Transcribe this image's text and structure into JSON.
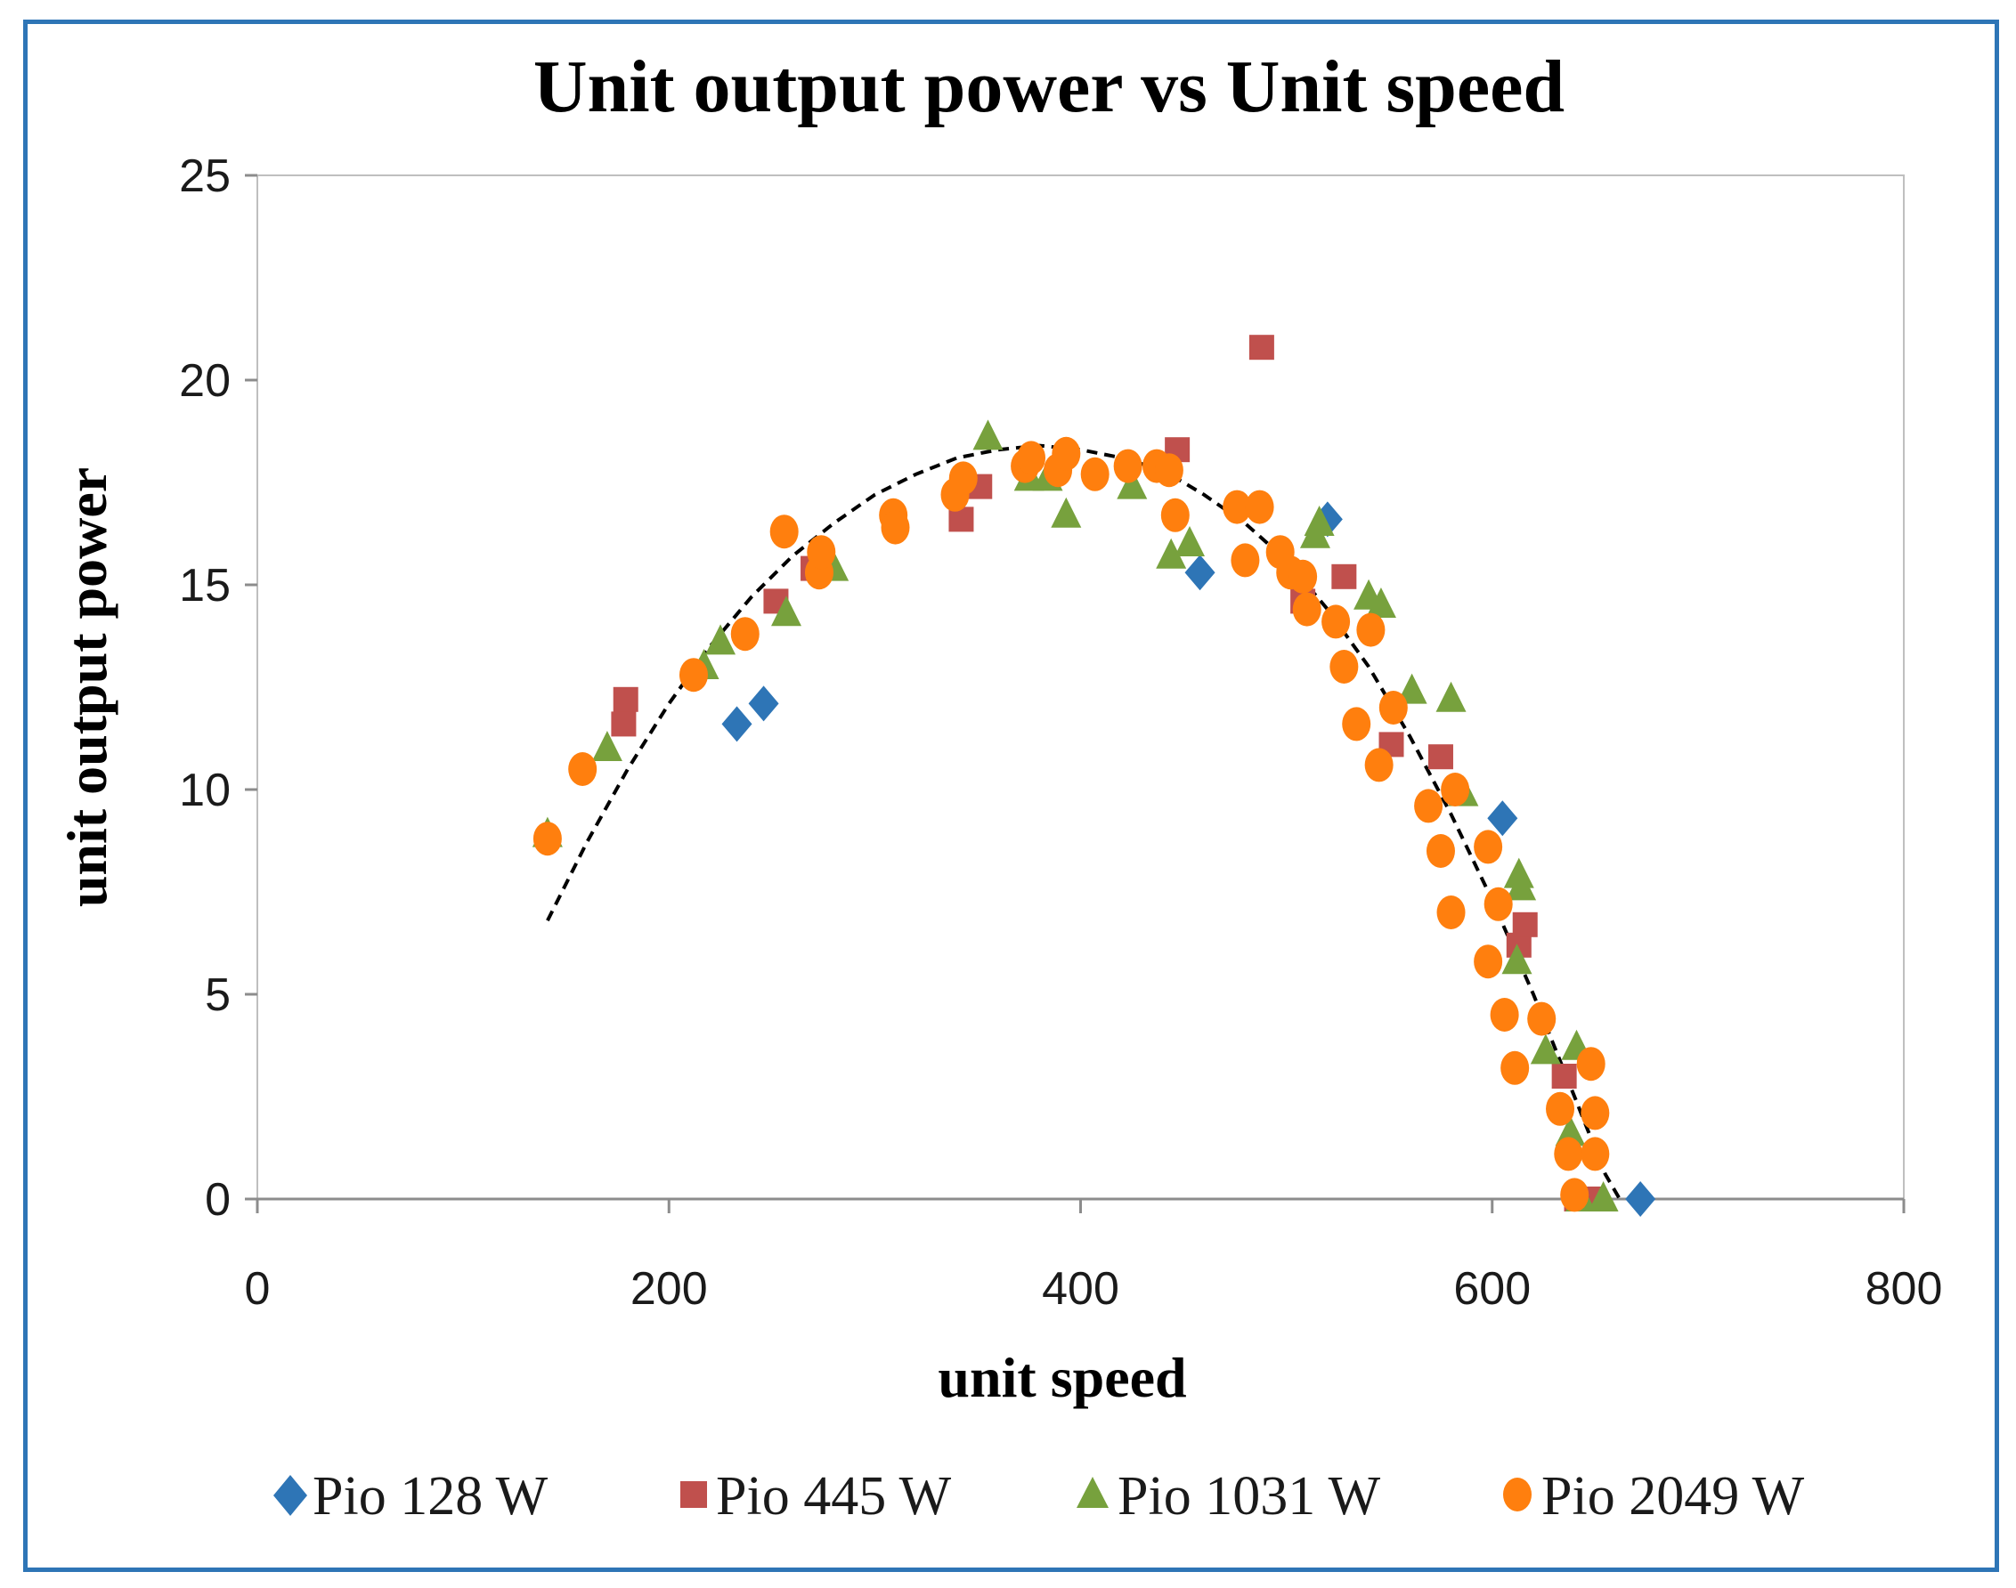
{
  "chart_data": {
    "type": "scatter",
    "title": "Unit output power vs Unit speed",
    "xlabel": "unit speed",
    "ylabel": "unit output power",
    "xlim": [
      0,
      800
    ],
    "ylim": [
      0,
      25
    ],
    "xticks": [
      "0",
      "200",
      "400",
      "600",
      "800"
    ],
    "yticks": [
      "0",
      "5",
      "10",
      "15",
      "20",
      "25"
    ],
    "grid": false,
    "legend_position": "bottom",
    "series": [
      {
        "name": "Pio 128 W",
        "marker": "diamond",
        "color": "#2e75b6",
        "points": [
          [
            233,
            11.6
          ],
          [
            246,
            12.1
          ],
          [
            458,
            15.3
          ],
          [
            520,
            16.6
          ],
          [
            605,
            9.3
          ],
          [
            672,
            0.0
          ]
        ]
      },
      {
        "name": "Pio 445 W",
        "marker": "square",
        "color": "#c0504d",
        "points": [
          [
            178,
            11.6
          ],
          [
            179,
            12.2
          ],
          [
            252,
            14.6
          ],
          [
            270,
            15.4
          ],
          [
            342,
            16.6
          ],
          [
            351,
            17.4
          ],
          [
            447,
            18.3
          ],
          [
            488,
            20.8
          ],
          [
            508,
            14.6
          ],
          [
            528,
            15.2
          ],
          [
            551,
            11.1
          ],
          [
            575,
            10.8
          ],
          [
            613,
            6.2
          ],
          [
            616,
            6.7
          ],
          [
            635,
            3.0
          ],
          [
            641,
            0.0
          ],
          [
            647,
            0.0
          ]
        ]
      },
      {
        "name": "Pio 1031 W",
        "marker": "triangle",
        "color": "#77a13d",
        "points": [
          [
            141,
            8.9
          ],
          [
            170,
            11.0
          ],
          [
            217,
            13.0
          ],
          [
            225,
            13.6
          ],
          [
            257,
            14.3
          ],
          [
            280,
            15.4
          ],
          [
            355,
            18.6
          ],
          [
            375,
            17.6
          ],
          [
            384,
            17.6
          ],
          [
            393,
            16.7
          ],
          [
            425,
            17.4
          ],
          [
            444,
            15.7
          ],
          [
            453,
            16.0
          ],
          [
            514,
            16.2
          ],
          [
            516,
            16.5
          ],
          [
            540,
            14.7
          ],
          [
            546,
            14.5
          ],
          [
            561,
            12.4
          ],
          [
            580,
            12.2
          ],
          [
            586,
            9.9
          ],
          [
            613,
            7.9
          ],
          [
            614,
            7.6
          ],
          [
            612,
            5.8
          ],
          [
            626,
            3.6
          ],
          [
            638,
            1.6
          ],
          [
            641,
            3.7
          ],
          [
            643,
            0.0
          ],
          [
            654,
            0.0
          ]
        ]
      },
      {
        "name": "Pio 2049 W",
        "marker": "circle",
        "color": "#ff7f0e",
        "points": [
          [
            141,
            8.8
          ],
          [
            158,
            10.5
          ],
          [
            212,
            12.8
          ],
          [
            237,
            13.8
          ],
          [
            256,
            16.3
          ],
          [
            273,
            15.3
          ],
          [
            274,
            15.8
          ],
          [
            309,
            16.7
          ],
          [
            310,
            16.4
          ],
          [
            339,
            17.2
          ],
          [
            343,
            17.6
          ],
          [
            373,
            17.9
          ],
          [
            376,
            18.1
          ],
          [
            389,
            17.8
          ],
          [
            393,
            18.2
          ],
          [
            407,
            17.7
          ],
          [
            423,
            17.9
          ],
          [
            437,
            17.9
          ],
          [
            443,
            17.8
          ],
          [
            446,
            16.7
          ],
          [
            476,
            16.9
          ],
          [
            480,
            15.6
          ],
          [
            487,
            16.9
          ],
          [
            497,
            15.8
          ],
          [
            502,
            15.3
          ],
          [
            508,
            15.2
          ],
          [
            510,
            14.4
          ],
          [
            524,
            14.1
          ],
          [
            528,
            13.0
          ],
          [
            534,
            11.6
          ],
          [
            541,
            13.9
          ],
          [
            545,
            10.6
          ],
          [
            552,
            12.0
          ],
          [
            569,
            9.6
          ],
          [
            575,
            8.5
          ],
          [
            580,
            7.0
          ],
          [
            582,
            10.0
          ],
          [
            598,
            8.6
          ],
          [
            598,
            5.8
          ],
          [
            603,
            7.2
          ],
          [
            606,
            4.5
          ],
          [
            611,
            3.2
          ],
          [
            624,
            4.4
          ],
          [
            633,
            2.2
          ],
          [
            637,
            1.1
          ],
          [
            640,
            0.1
          ],
          [
            648,
            3.3
          ],
          [
            650,
            1.1
          ],
          [
            650,
            2.1
          ]
        ]
      }
    ],
    "trendline": {
      "name": "polynomial fit",
      "style": "dashed",
      "color": "#000000",
      "points": [
        [
          141,
          6.8
        ],
        [
          160,
          8.7
        ],
        [
          180,
          10.5
        ],
        [
          200,
          12.1
        ],
        [
          220,
          13.5
        ],
        [
          240,
          14.7
        ],
        [
          260,
          15.7
        ],
        [
          280,
          16.5
        ],
        [
          300,
          17.2
        ],
        [
          320,
          17.7
        ],
        [
          340,
          18.1
        ],
        [
          360,
          18.3
        ],
        [
          380,
          18.4
        ],
        [
          400,
          18.3
        ],
        [
          420,
          18.1
        ],
        [
          440,
          17.8
        ],
        [
          460,
          17.2
        ],
        [
          480,
          16.5
        ],
        [
          500,
          15.6
        ],
        [
          520,
          14.4
        ],
        [
          540,
          13.0
        ],
        [
          560,
          11.3
        ],
        [
          580,
          9.4
        ],
        [
          600,
          7.3
        ],
        [
          620,
          5.0
        ],
        [
          640,
          2.5
        ],
        [
          655,
          0.6
        ],
        [
          662,
          0.0
        ]
      ]
    }
  }
}
